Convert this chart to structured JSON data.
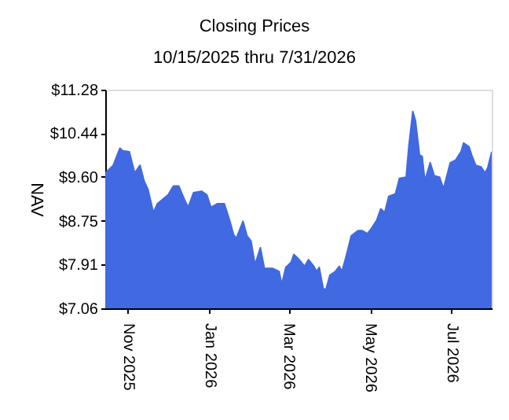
{
  "chart_data": {
    "type": "area",
    "title": "Closing Prices",
    "subtitle": "10/15/2025 thru 7/31/2026",
    "ylabel": "NAV",
    "x": [
      "2025-10-15",
      "2025-10-21",
      "2025-10-26",
      "2025-10-28",
      "2025-11-02",
      "2025-11-06",
      "2025-11-10",
      "2025-11-13",
      "2025-11-16",
      "2025-11-20",
      "2025-11-23",
      "2025-12-01",
      "2025-12-05",
      "2025-12-09",
      "2025-12-13",
      "2025-12-16",
      "2025-12-20",
      "2025-12-26",
      "2025-12-30",
      "2026-01-02",
      "2026-01-07",
      "2026-01-12",
      "2026-01-16",
      "2026-01-19",
      "2026-01-21",
      "2026-01-26",
      "2026-01-29",
      "2026-02-01",
      "2026-02-04",
      "2026-02-08",
      "2026-02-11",
      "2026-02-17",
      "2026-02-22",
      "2026-02-24",
      "2026-02-27",
      "2026-03-03",
      "2026-03-05",
      "2026-03-09",
      "2026-03-13",
      "2026-03-16",
      "2026-03-20",
      "2026-03-22",
      "2026-03-24",
      "2026-03-27",
      "2026-03-29",
      "2026-04-01",
      "2026-04-05",
      "2026-04-08",
      "2026-04-10",
      "2026-04-13",
      "2026-04-17",
      "2026-04-22",
      "2026-04-25",
      "2026-04-29",
      "2026-05-02",
      "2026-05-06",
      "2026-05-09",
      "2026-05-12",
      "2026-05-15",
      "2026-05-20",
      "2026-05-23",
      "2026-05-28",
      "2026-05-30",
      "2026-06-02",
      "2026-06-04",
      "2026-06-07",
      "2026-06-09",
      "2026-06-11",
      "2026-06-15",
      "2026-06-18",
      "2026-06-22",
      "2026-06-25",
      "2026-06-30",
      "2026-07-04",
      "2026-07-08",
      "2026-07-10",
      "2026-07-14",
      "2026-07-16",
      "2026-07-19",
      "2026-07-23",
      "2026-07-26",
      "2026-07-28",
      "2026-07-31"
    ],
    "series": [
      {
        "color": "#4169e1",
        "values": [
          9.67,
          9.82,
          10.15,
          10.1,
          10.08,
          9.67,
          9.82,
          9.52,
          9.35,
          8.91,
          9.08,
          9.25,
          9.42,
          9.42,
          9.17,
          9.01,
          9.29,
          9.32,
          9.25,
          9.01,
          9.08,
          9.08,
          8.76,
          8.48,
          8.41,
          8.74,
          8.46,
          8.36,
          7.9,
          8.23,
          7.83,
          7.83,
          7.77,
          7.52,
          7.85,
          7.95,
          8.1,
          8.0,
          7.87,
          8.0,
          7.87,
          7.77,
          7.85,
          7.44,
          7.42,
          7.7,
          7.77,
          7.87,
          7.77,
          8.05,
          8.46,
          8.56,
          8.56,
          8.5,
          8.6,
          8.76,
          8.98,
          8.91,
          9.22,
          9.27,
          9.57,
          9.59,
          10.18,
          10.86,
          10.68,
          10.02,
          9.99,
          9.52,
          9.87,
          9.62,
          9.59,
          9.37,
          9.87,
          9.92,
          10.08,
          10.25,
          10.18,
          10.02,
          9.82,
          9.79,
          9.67,
          9.77,
          10.08
        ]
      }
    ],
    "xlim": [
      "2025-10-15",
      "2026-07-31"
    ],
    "xticks": [
      {
        "value": "2025-11-01",
        "label": "Nov 2025"
      },
      {
        "value": "2026-01-01",
        "label": "Jan 2026"
      },
      {
        "value": "2026-03-01",
        "label": "Mar 2026"
      },
      {
        "value": "2026-05-01",
        "label": "May 2026"
      },
      {
        "value": "2026-07-01",
        "label": "Jul 2026"
      }
    ],
    "ylim": [
      7.06,
      11.28
    ],
    "yticks": [
      {
        "value": 7.06,
        "label": "$7.06"
      },
      {
        "value": 7.91,
        "label": "$7.91"
      },
      {
        "value": 8.75,
        "label": "$8.75"
      },
      {
        "value": 9.6,
        "label": "$9.60"
      },
      {
        "value": 10.44,
        "label": "$10.44"
      },
      {
        "value": 11.28,
        "label": "$11.28"
      }
    ],
    "grid": false
  }
}
